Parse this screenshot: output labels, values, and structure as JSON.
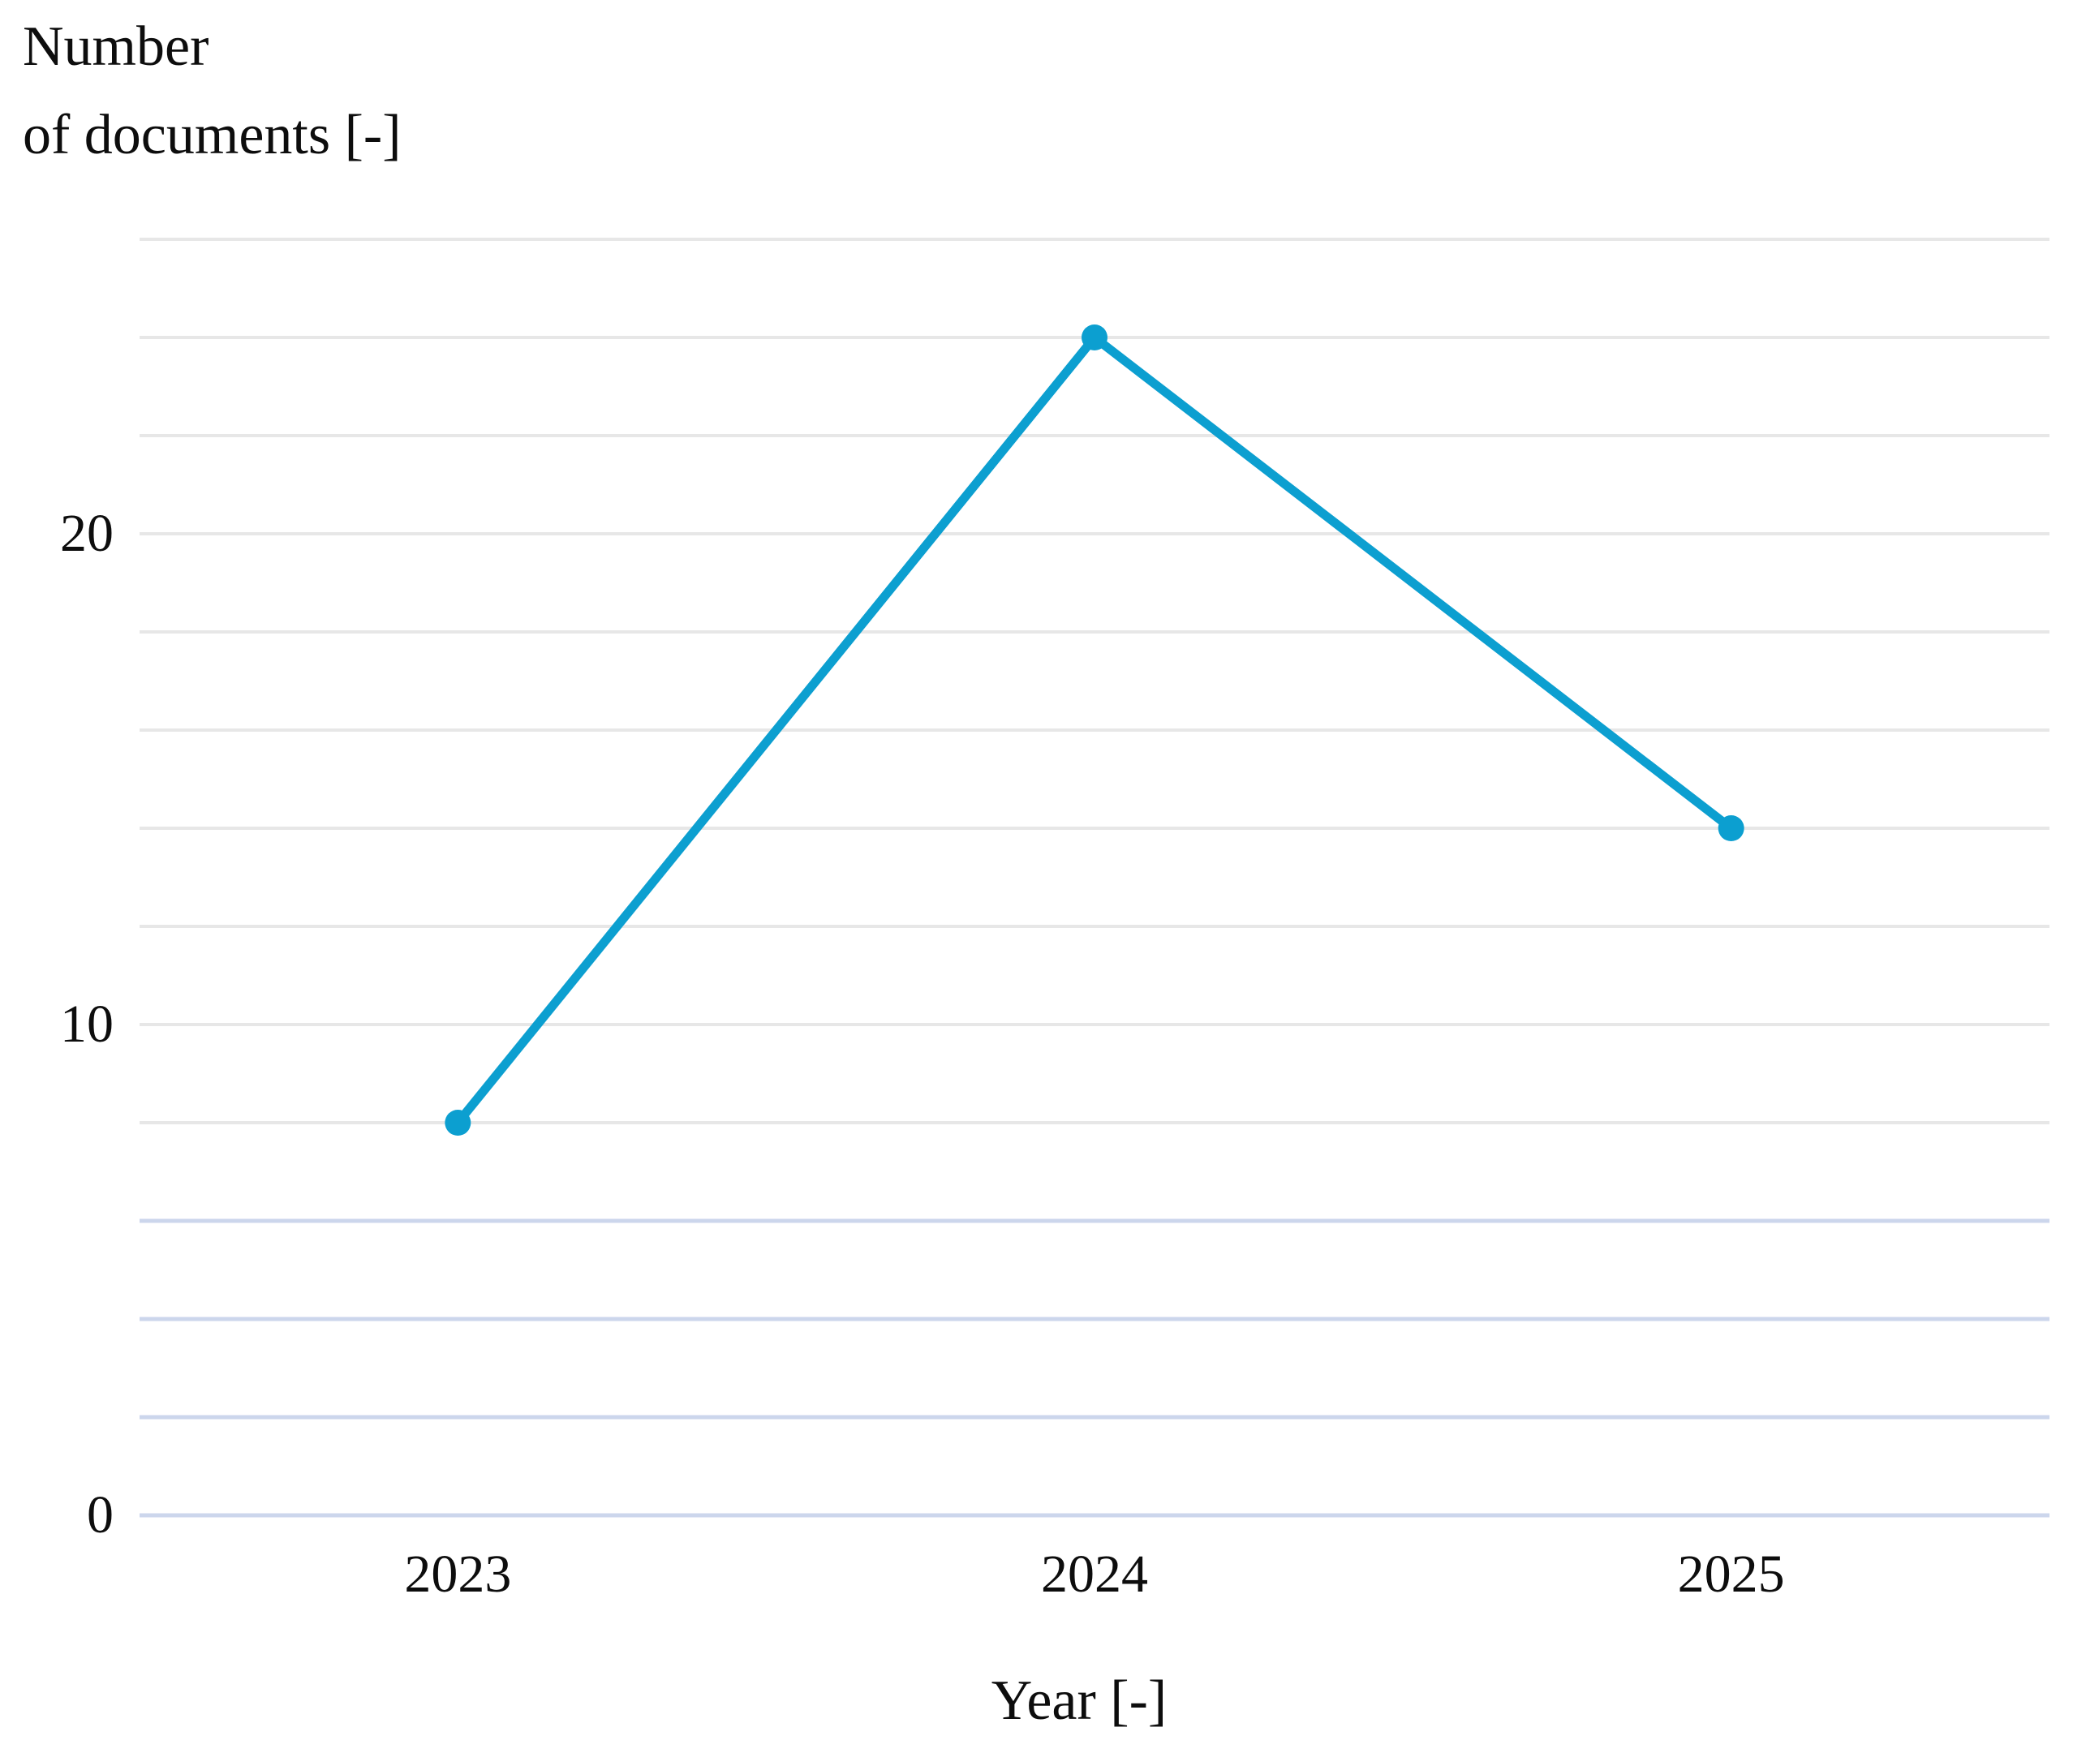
{
  "y_axis": {
    "title_line1": "Number",
    "title_line2": "of documents [-]"
  },
  "x_axis": {
    "title": "Year [-]"
  },
  "chart_data": {
    "type": "line",
    "categories": [
      "2023",
      "2024",
      "2025"
    ],
    "series": [
      {
        "name": "Number of documents",
        "values": [
          8,
          24,
          14
        ]
      }
    ],
    "xlabel": "Year [-]",
    "ylabel_lines": [
      "Number",
      "of documents [-]"
    ],
    "ylim": [
      0,
      26
    ],
    "yticks_labeled": [
      0,
      10,
      20
    ],
    "gridline_step": 2,
    "grid": "horizontal only",
    "legend_position": "none",
    "marker": "filled circle",
    "colors": {
      "line": "#0c9fd0",
      "grid_upper": "#e7e7e7",
      "grid_lower": "#ccd6ec",
      "text": "#0d0d0d"
    },
    "grid_lower_applies_below_value": 8
  }
}
